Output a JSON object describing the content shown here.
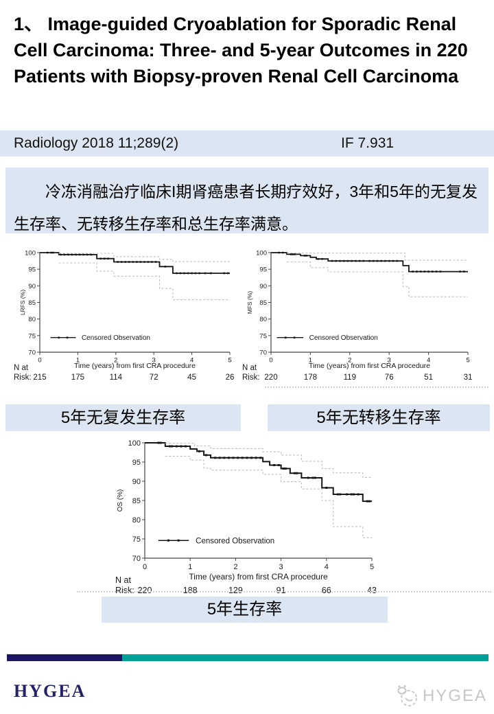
{
  "title": "1、 Image-guided Cryoablation for Sporadic Renal Cell Carcinoma: Three- and 5-year Outcomes in 220 Patients with Biopsy-proven Renal Cell Carcinoma",
  "journal_bar": {
    "citation": "Radiology 2018 11;289(2)",
    "impact_factor": "IF 7.931",
    "bg": "#dbe6f2"
  },
  "summary": {
    "text": "冷冻消融治疗临床I期肾癌患者长期疗效好，3年和5年的无复发生存率、无转移生存率和总生存率满意。",
    "bg": "#dbe6f2"
  },
  "captions": {
    "lrfs": "5年无复发生存率",
    "mfs": "5年无转移生存率",
    "os": "5年生存率"
  },
  "footer": {
    "brand": "HYGEA",
    "watermark_text": "HYGEA",
    "bar_navy": "#1b1562",
    "bar_teal": "#029e98",
    "brand_color": "#232268",
    "watermark_color": "#c7c7c7"
  },
  "chart_data": [
    {
      "type": "line",
      "subtype": "kaplan-meier-step",
      "ylabel": "LRFS (%)",
      "xlabel": "Time (years) from first CRA procedure",
      "legend": "Censored Observation",
      "xlim": [
        0,
        5
      ],
      "ylim": [
        70,
        100
      ],
      "xticks": [
        0,
        1,
        2,
        3,
        4,
        5
      ],
      "yticks": [
        70,
        75,
        80,
        85,
        90,
        95,
        100
      ],
      "risk_label": [
        "N at",
        "Risk:"
      ],
      "n_at_risk": [
        215,
        175,
        114,
        72,
        45,
        26
      ],
      "line_color": "#161616",
      "ci_color": "#bdbdbd",
      "legend_y": 74.4,
      "legend_line": [
        0.28,
        0.95
      ],
      "legend_tx": 1.1,
      "series": [
        {
          "name": "LRFS",
          "style": "solid",
          "points": [
            [
              0,
              100
            ],
            [
              0.5,
              100
            ],
            [
              0.5,
              99.4
            ],
            [
              1.5,
              99.4
            ],
            [
              1.5,
              98.2
            ],
            [
              1.95,
              98.2
            ],
            [
              1.95,
              97.2
            ],
            [
              3.15,
              97.2
            ],
            [
              3.15,
              95.8
            ],
            [
              3.5,
              95.8
            ],
            [
              3.5,
              93.8
            ],
            [
              5,
              93.8
            ]
          ]
        },
        {
          "name": "upper 95% CI",
          "style": "dashed",
          "points": [
            [
              0.5,
              99.8
            ],
            [
              1.95,
              99.8
            ],
            [
              1.95,
              98.8
            ],
            [
              3.15,
              98.8
            ],
            [
              3.15,
              98.0
            ],
            [
              3.5,
              98.0
            ],
            [
              3.5,
              97.3
            ],
            [
              5,
              97.3
            ]
          ]
        },
        {
          "name": "lower 95% CI",
          "style": "dashed",
          "points": [
            [
              0.5,
              96.9
            ],
            [
              1.5,
              96.9
            ],
            [
              1.5,
              94.4
            ],
            [
              1.95,
              94.4
            ],
            [
              1.95,
              92.9
            ],
            [
              3.15,
              92.9
            ],
            [
              3.15,
              89.2
            ],
            [
              3.5,
              89.2
            ],
            [
              3.5,
              85.8
            ],
            [
              5,
              85.8
            ]
          ]
        }
      ],
      "censor_marks_x": [
        0.2,
        0.3,
        0.35,
        0.55,
        0.65,
        0.75,
        0.85,
        0.95,
        1.05,
        1.15,
        1.25,
        1.35,
        1.6,
        1.7,
        1.8,
        2.05,
        2.15,
        2.25,
        2.35,
        2.45,
        2.55,
        2.65,
        2.75,
        2.85,
        2.95,
        3.05,
        3.3,
        3.6,
        3.7,
        3.8,
        3.9,
        4.0,
        4.1,
        4.2,
        4.35,
        4.5,
        4.85,
        4.95
      ]
    },
    {
      "type": "line",
      "subtype": "kaplan-meier-step",
      "ylabel": "MFS (%)",
      "xlabel": "Time (years) from first CRA procedure",
      "legend": "Censored Observation",
      "xlim": [
        0,
        5
      ],
      "ylim": [
        70,
        100
      ],
      "xticks": [
        0,
        1,
        2,
        3,
        4,
        5
      ],
      "yticks": [
        70,
        75,
        80,
        85,
        90,
        95,
        100
      ],
      "risk_label": [
        "N at",
        "Risk:"
      ],
      "n_at_risk": [
        220,
        178,
        119,
        76,
        51,
        31
      ],
      "line_color": "#161616",
      "ci_color": "#bdbdbd",
      "legend_y": 74.4,
      "legend_line": [
        0.15,
        0.82
      ],
      "legend_tx": 0.97,
      "series": [
        {
          "name": "MFS",
          "style": "solid",
          "points": [
            [
              0,
              100
            ],
            [
              0.4,
              100
            ],
            [
              0.4,
              99.5
            ],
            [
              0.75,
              99.5
            ],
            [
              0.75,
              99.1
            ],
            [
              1.0,
              99.1
            ],
            [
              1.0,
              98.6
            ],
            [
              1.15,
              98.6
            ],
            [
              1.15,
              98.1
            ],
            [
              1.45,
              98.1
            ],
            [
              1.45,
              97.5
            ],
            [
              3.35,
              97.5
            ],
            [
              3.35,
              96.1
            ],
            [
              3.5,
              96.1
            ],
            [
              3.5,
              94.3
            ],
            [
              5,
              94.3
            ]
          ]
        },
        {
          "name": "upper 95% CI",
          "style": "dashed",
          "points": [
            [
              0.4,
              99.9
            ],
            [
              3.4,
              99.9
            ],
            [
              3.4,
              97.7
            ],
            [
              5,
              97.7
            ]
          ]
        },
        {
          "name": "lower 95% CI",
          "style": "dashed",
          "points": [
            [
              0.4,
              97.2
            ],
            [
              1.0,
              97.2
            ],
            [
              1.0,
              95.5
            ],
            [
              1.45,
              95.5
            ],
            [
              1.45,
              94.2
            ],
            [
              3.35,
              94.2
            ],
            [
              3.35,
              89.8
            ],
            [
              3.5,
              89.8
            ],
            [
              3.5,
              86.7
            ],
            [
              5,
              86.7
            ]
          ]
        }
      ],
      "censor_marks_x": [
        0.2,
        0.3,
        0.5,
        0.55,
        0.6,
        0.85,
        0.9,
        1.2,
        1.3,
        1.55,
        1.65,
        1.75,
        1.85,
        1.95,
        2.05,
        2.15,
        2.25,
        2.35,
        2.5,
        2.6,
        2.7,
        2.8,
        2.9,
        3.0,
        3.1,
        3.2,
        3.6,
        3.7,
        3.8,
        3.9,
        4.0,
        4.1,
        4.2,
        4.3,
        4.8,
        4.9
      ]
    },
    {
      "type": "line",
      "subtype": "kaplan-meier-step",
      "ylabel": "OS (%)",
      "xlabel": "Time (years) from first CRA procedure",
      "legend": "Censored Observation",
      "xlim": [
        0,
        5
      ],
      "ylim": [
        70,
        100
      ],
      "xticks": [
        0,
        1,
        2,
        3,
        4,
        5
      ],
      "yticks": [
        70,
        75,
        80,
        85,
        90,
        95,
        100
      ],
      "risk_label": [
        "N at",
        "Risk:"
      ],
      "n_at_risk": [
        220,
        188,
        129,
        91,
        66,
        43
      ],
      "line_color": "#161616",
      "ci_color": "#bdbdbd",
      "legend_y": 74.6,
      "legend_line": [
        0.3,
        0.97
      ],
      "legend_tx": 1.12,
      "series": [
        {
          "name": "OS",
          "style": "solid",
          "points": [
            [
              0,
              100
            ],
            [
              0.45,
              100
            ],
            [
              0.45,
              99.1
            ],
            [
              1.0,
              99.1
            ],
            [
              1.0,
              98.4
            ],
            [
              1.15,
              98.4
            ],
            [
              1.15,
              97.8
            ],
            [
              1.3,
              97.8
            ],
            [
              1.3,
              96.8
            ],
            [
              1.45,
              96.8
            ],
            [
              1.45,
              96.1
            ],
            [
              2.6,
              96.1
            ],
            [
              2.6,
              95.1
            ],
            [
              2.75,
              95.1
            ],
            [
              2.75,
              94.2
            ],
            [
              3.0,
              94.2
            ],
            [
              3.0,
              93.3
            ],
            [
              3.2,
              93.3
            ],
            [
              3.2,
              92.1
            ],
            [
              3.45,
              92.1
            ],
            [
              3.45,
              90.9
            ],
            [
              3.9,
              90.9
            ],
            [
              3.9,
              88.3
            ],
            [
              4.15,
              88.3
            ],
            [
              4.15,
              86.6
            ],
            [
              4.8,
              86.6
            ],
            [
              4.8,
              84.8
            ],
            [
              5,
              84.8
            ]
          ]
        },
        {
          "name": "upper 95% CI",
          "style": "dashed",
          "points": [
            [
              0.45,
              99.9
            ],
            [
              1.1,
              99.9
            ],
            [
              1.1,
              99.2
            ],
            [
              1.45,
              99.2
            ],
            [
              1.45,
              98.5
            ],
            [
              2.6,
              98.5
            ],
            [
              2.6,
              97.7
            ],
            [
              3.0,
              97.7
            ],
            [
              3.0,
              96.8
            ],
            [
              3.45,
              96.8
            ],
            [
              3.45,
              95.2
            ],
            [
              3.9,
              95.2
            ],
            [
              3.9,
              93.3
            ],
            [
              4.15,
              93.3
            ],
            [
              4.15,
              92.2
            ],
            [
              4.8,
              92.2
            ],
            [
              4.8,
              91.0
            ],
            [
              5,
              91.0
            ]
          ]
        },
        {
          "name": "lower 95% CI",
          "style": "dashed",
          "points": [
            [
              0.45,
              96.5
            ],
            [
              1.0,
              96.5
            ],
            [
              1.0,
              95.5
            ],
            [
              1.3,
              95.5
            ],
            [
              1.3,
              93.4
            ],
            [
              1.45,
              93.4
            ],
            [
              1.45,
              92.9
            ],
            [
              2.6,
              92.9
            ],
            [
              2.6,
              91.8
            ],
            [
              3.0,
              91.8
            ],
            [
              3.0,
              89.9
            ],
            [
              3.45,
              89.9
            ],
            [
              3.45,
              88.0
            ],
            [
              3.9,
              88.0
            ],
            [
              3.9,
              85.0
            ],
            [
              4.15,
              85.0
            ],
            [
              4.15,
              78.2
            ],
            [
              4.8,
              78.2
            ],
            [
              4.8,
              75.3
            ],
            [
              5,
              75.3
            ]
          ]
        }
      ],
      "censor_marks_x": [
        0.3,
        0.35,
        0.55,
        0.6,
        0.7,
        0.8,
        0.9,
        1.2,
        1.35,
        1.55,
        1.65,
        1.75,
        1.85,
        1.95,
        2.05,
        2.15,
        2.25,
        2.35,
        2.45,
        2.55,
        2.85,
        2.95,
        3.05,
        3.1,
        3.3,
        3.35,
        3.6,
        3.7,
        3.75,
        4.0,
        4.25,
        4.3,
        4.45,
        4.55,
        4.6,
        4.7,
        4.9,
        4.95
      ]
    }
  ]
}
